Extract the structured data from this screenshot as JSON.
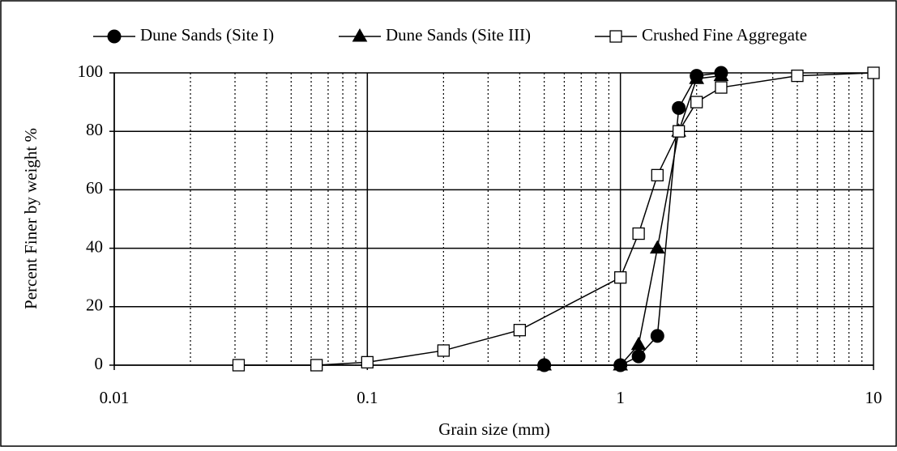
{
  "chart_data": {
    "type": "line",
    "x_label": "Grain size (mm)",
    "y_label": "Percent Finer by weight %",
    "log_x": true,
    "xlim": [
      0.01,
      10
    ],
    "xticks": [
      0.01,
      0.1,
      1,
      10
    ],
    "ylim": [
      0,
      100
    ],
    "yticks": [
      0,
      20,
      40,
      60,
      80,
      100
    ],
    "grid": true,
    "minor_grid": true,
    "series": [
      {
        "name": "Dune Sands (Site I)",
        "color": "#000000",
        "marker": "circle",
        "x": [
          0.5,
          1,
          1.18,
          1.4,
          1.7,
          2,
          2.5
        ],
        "values": [
          0,
          0,
          3,
          10,
          88,
          99,
          100
        ]
      },
      {
        "name": "Dune Sands (Site III)",
        "color": "#000000",
        "marker": "triangle",
        "x": [
          0.5,
          1,
          1.18,
          1.4,
          1.7,
          2,
          2.5
        ],
        "values": [
          0,
          0,
          7,
          40,
          80,
          98,
          99
        ]
      },
      {
        "name": "Crushed Fine Aggregate",
        "color": "#000000",
        "marker": "square",
        "x": [
          0.031,
          0.063,
          0.1,
          0.2,
          0.4,
          1,
          1.18,
          1.4,
          1.7,
          2,
          2.5,
          5,
          10
        ],
        "values": [
          0,
          0,
          1,
          5,
          12,
          30,
          45,
          65,
          80,
          90,
          95,
          99,
          100
        ]
      }
    ]
  }
}
